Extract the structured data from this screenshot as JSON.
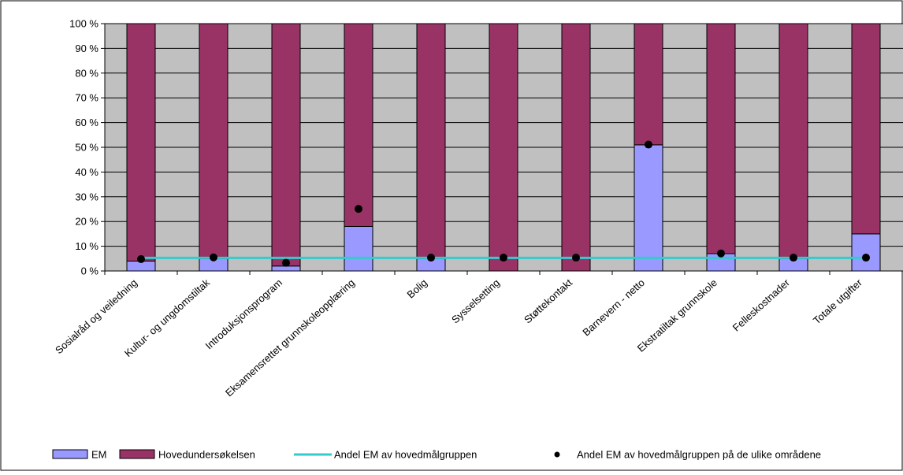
{
  "chart_data": {
    "type": "bar",
    "stacked": true,
    "ylim": [
      0,
      100
    ],
    "y_ticks": [
      "0 %",
      "10 %",
      "20 %",
      "30 %",
      "40 %",
      "50 %",
      "60 %",
      "70 %",
      "80 %",
      "90 %",
      "100 %"
    ],
    "grid": true,
    "legend_position": "bottom",
    "categories": [
      "Sosialråd og veiledning",
      "Kultur- og ungdomstiltak",
      "Introduksjonsprogram",
      "Eksamensrettet grunnskoleopplæring",
      "Bolig",
      "Sysselsetting",
      "Støttekontakt",
      "Barnevern - netto",
      "Ekstratiltak grunnskole",
      "Felleskostnader",
      "Totale utgifter"
    ],
    "series": [
      {
        "name": "EM",
        "type": "bar",
        "color": "#9999ff",
        "values": [
          4,
          5,
          2,
          18,
          5,
          0,
          0,
          51,
          7,
          5,
          15
        ]
      },
      {
        "name": "Hovedundersøkelsen",
        "type": "bar",
        "color": "#993366",
        "values": [
          96,
          95,
          98,
          82,
          95,
          100,
          100,
          49,
          93,
          95,
          85
        ]
      },
      {
        "name": "Andel EM av hovedmålgruppen",
        "type": "line",
        "color": "#33cccc",
        "value": 5.3
      },
      {
        "name": "Andel EM av hovedmålgruppen på de ulike områdene",
        "type": "scatter",
        "color": "#000000",
        "values": [
          4.8,
          5.5,
          3.3,
          25.1,
          5.4,
          5.4,
          5.4,
          51.1,
          7.1,
          5.4,
          5.4
        ]
      }
    ],
    "colors": {
      "plot_background": "#c0c0c0",
      "gridline": "#000000"
    }
  }
}
